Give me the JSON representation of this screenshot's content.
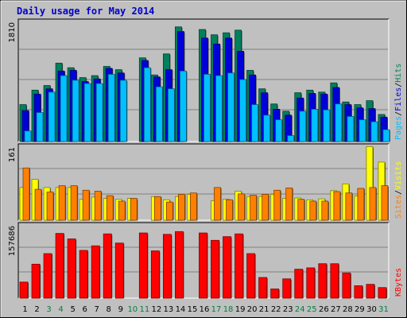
{
  "title": "Daily usage for May 2014",
  "colors": {
    "hits": "#00805c",
    "files": "#0000d8",
    "pages": "#00c0ff",
    "visits": "#ffff00",
    "sites": "#ff8000",
    "kbytes": "#ff0000",
    "weekend_day": "#008040",
    "weekday": "#000000",
    "bg": "#c0c0c0",
    "plot_bg": "#c0c0c0"
  },
  "panel_labels": {
    "top": [
      "Pages",
      "/",
      "Files",
      "/",
      "Hits"
    ],
    "middle": [
      "Sites",
      "/",
      "Visits"
    ],
    "bottom": [
      "KBytes"
    ]
  },
  "chart_data": [
    {
      "type": "bar",
      "panel": "hits-files-pages",
      "ymax_label": "1810",
      "ylim": [
        0,
        1810
      ],
      "categories": [
        "1",
        "2",
        "3",
        "4",
        "5",
        "6",
        "7",
        "8",
        "9",
        "10",
        "11",
        "12",
        "13",
        "14",
        "15",
        "16",
        "17",
        "18",
        "19",
        "20",
        "21",
        "22",
        "23",
        "24",
        "25",
        "26",
        "27",
        "28",
        "29",
        "30",
        "31"
      ],
      "series": [
        {
          "name": "Hits",
          "values": [
            560,
            780,
            850,
            1190,
            1120,
            970,
            1000,
            1140,
            1090,
            0,
            1270,
            1010,
            1330,
            1740,
            0,
            1700,
            1620,
            1650,
            1690,
            1080,
            800,
            570,
            460,
            740,
            780,
            750,
            890,
            600,
            560,
            620,
            410
          ]
        },
        {
          "name": "Files",
          "values": [
            470,
            720,
            800,
            1070,
            1080,
            910,
            950,
            1110,
            1040,
            0,
            1230,
            980,
            1090,
            1670,
            0,
            1570,
            1480,
            1570,
            1370,
            1010,
            740,
            490,
            400,
            660,
            730,
            720,
            820,
            560,
            510,
            500,
            370
          ]
        },
        {
          "name": "Pages",
          "values": [
            160,
            440,
            750,
            1000,
            930,
            880,
            880,
            1020,
            930,
            0,
            1120,
            830,
            800,
            1070,
            0,
            1020,
            1000,
            1040,
            940,
            560,
            400,
            330,
            90,
            460,
            490,
            480,
            570,
            380,
            330,
            300,
            180
          ]
        }
      ]
    },
    {
      "type": "bar",
      "panel": "visits-sites",
      "ymax_label": "161",
      "ylim": [
        0,
        161
      ],
      "categories": [
        "1",
        "2",
        "3",
        "4",
        "5",
        "6",
        "7",
        "8",
        "9",
        "10",
        "11",
        "12",
        "13",
        "14",
        "15",
        "16",
        "17",
        "18",
        "19",
        "20",
        "21",
        "22",
        "23",
        "24",
        "25",
        "26",
        "27",
        "28",
        "29",
        "30",
        "31"
      ],
      "series": [
        {
          "name": "Visits",
          "values": [
            72,
            90,
            72,
            72,
            72,
            46,
            51,
            48,
            46,
            48,
            0,
            52,
            45,
            52,
            57,
            0,
            43,
            46,
            64,
            52,
            52,
            57,
            48,
            49,
            45,
            47,
            65,
            80,
            53,
            162,
            128
          ]
        },
        {
          "name": "Sites",
          "values": [
            115,
            68,
            62,
            76,
            76,
            66,
            64,
            54,
            42,
            48,
            0,
            52,
            40,
            57,
            60,
            0,
            72,
            45,
            58,
            55,
            57,
            66,
            71,
            46,
            42,
            42,
            63,
            60,
            70,
            72,
            76
          ]
        }
      ]
    },
    {
      "type": "bar",
      "panel": "kbytes",
      "ymax_label": "157686",
      "ylim": [
        0,
        157686
      ],
      "categories": [
        "1",
        "2",
        "3",
        "4",
        "5",
        "6",
        "7",
        "8",
        "9",
        "10",
        "11",
        "12",
        "13",
        "14",
        "15",
        "16",
        "17",
        "18",
        "19",
        "20",
        "21",
        "22",
        "23",
        "24",
        "25",
        "26",
        "27",
        "28",
        "29",
        "30",
        "31"
      ],
      "series": [
        {
          "name": "KBytes",
          "values": [
            35000,
            74000,
            97000,
            141000,
            129000,
            104000,
            114000,
            140000,
            120000,
            0,
            142000,
            103000,
            139000,
            145000,
            0,
            142000,
            126000,
            134000,
            140000,
            97000,
            45000,
            20000,
            42000,
            63000,
            66000,
            75000,
            75000,
            55000,
            27000,
            30000,
            23000
          ]
        }
      ]
    }
  ]
}
